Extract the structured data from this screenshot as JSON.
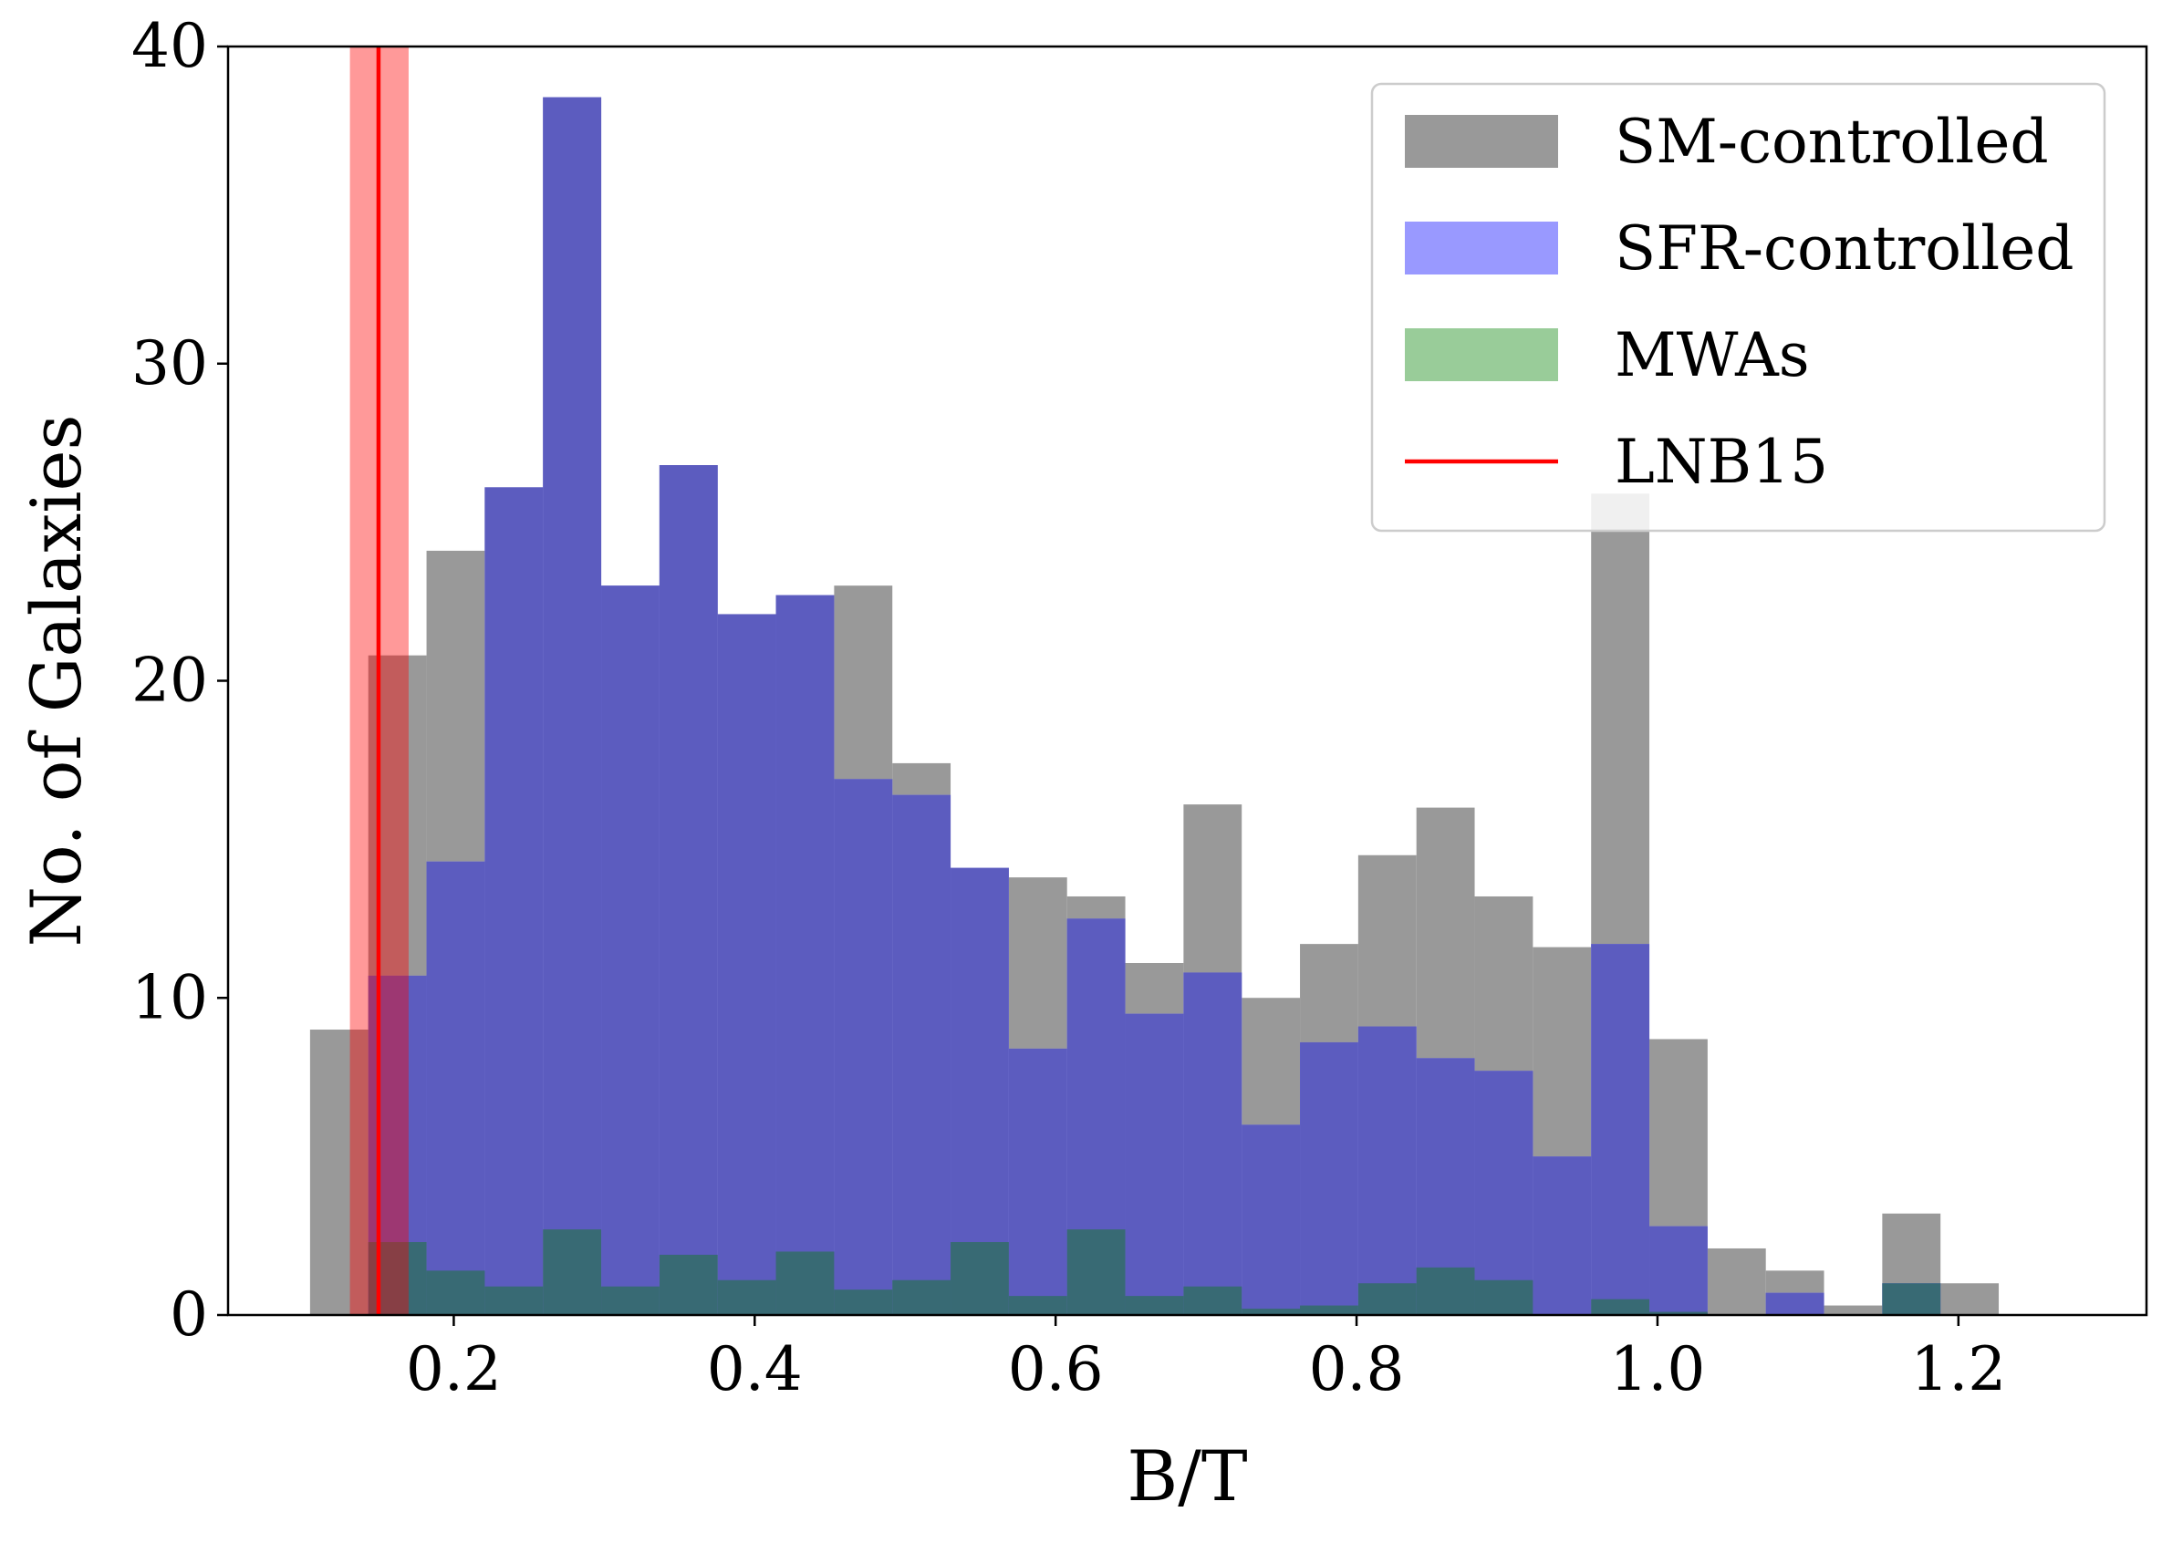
{
  "chart_data": {
    "type": "bar",
    "subtype": "overlapping-histogram",
    "xlabel": "B/T",
    "ylabel": "No. of Galaxies",
    "xlim": [
      0.05,
      1.325
    ],
    "ylim": [
      0,
      40
    ],
    "xticks": [
      0.2,
      0.4,
      0.6,
      0.8,
      1.0,
      1.2
    ],
    "xtick_labels": [
      "0.2",
      "0.4",
      "0.6",
      "0.8",
      "1.0",
      "1.2"
    ],
    "yticks": [
      0,
      10,
      20,
      30,
      40
    ],
    "ytick_labels": [
      "0",
      "10",
      "20",
      "30",
      "40"
    ],
    "grid": false,
    "legend_position": "top-right",
    "bin_edges": [
      0.1045,
      0.1432,
      0.1819,
      0.2206,
      0.2593,
      0.298,
      0.3367,
      0.3754,
      0.4141,
      0.4528,
      0.4915,
      0.5302,
      0.5689,
      0.6076,
      0.6463,
      0.685,
      0.7237,
      0.7624,
      0.8011,
      0.8398,
      0.8785,
      0.9172,
      0.9559,
      0.9946,
      1.0333,
      1.072,
      1.1107,
      1.1494,
      1.1881,
      1.2268
    ],
    "series": [
      {
        "name": "SM-controlled",
        "color": "#999999",
        "values": [
          9.0,
          20.8,
          24.1,
          26.1,
          38.4,
          23.0,
          26.8,
          22.1,
          22.7,
          23.0,
          17.4,
          14.1,
          13.8,
          13.2,
          11.1,
          16.1,
          10.0,
          11.7,
          14.5,
          16.0,
          13.2,
          11.6,
          25.9,
          8.7,
          2.1,
          1.4,
          0.3,
          3.2,
          1.0
        ]
      },
      {
        "name": "SFR-controlled",
        "color": "#9999ff",
        "values": [
          0,
          10.7,
          14.3,
          26.1,
          38.4,
          23.0,
          26.8,
          22.1,
          22.7,
          16.9,
          16.4,
          14.1,
          8.4,
          12.5,
          9.5,
          10.8,
          6.0,
          8.6,
          9.1,
          8.1,
          7.7,
          5.0,
          11.7,
          2.8,
          0,
          0.7,
          0,
          1.0,
          0
        ]
      },
      {
        "name": "MWAs",
        "color": "#99cc99",
        "values": [
          0,
          2.3,
          1.4,
          0.9,
          2.7,
          0.9,
          1.9,
          1.1,
          2.0,
          0.8,
          1.1,
          2.3,
          0.6,
          2.7,
          0.6,
          0.9,
          0.2,
          0.3,
          1.0,
          1.5,
          1.1,
          0,
          0.5,
          0.1,
          0,
          0,
          0,
          1.0,
          0
        ]
      }
    ],
    "reference_line": {
      "name": "LNB15",
      "color": "#ff0000",
      "x": 0.15,
      "band": [
        0.131,
        0.17
      ]
    }
  }
}
